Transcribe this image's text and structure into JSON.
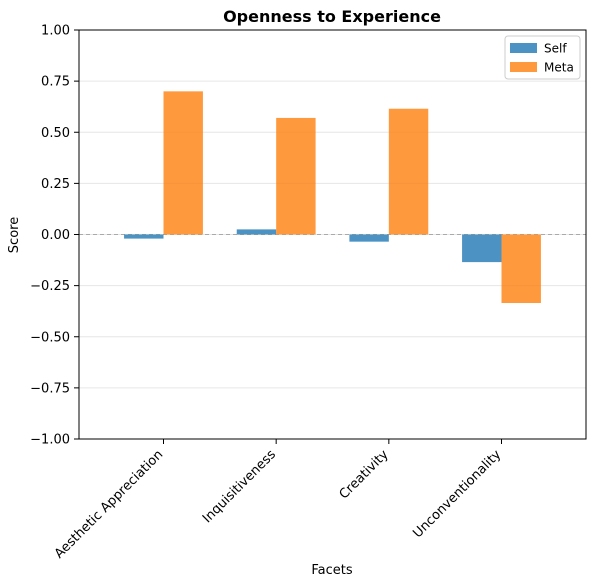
{
  "chart_data": {
    "type": "bar",
    "title": "Openness to Experience",
    "xlabel": "Facets",
    "ylabel": "Score",
    "categories": [
      "Aesthetic Appreciation",
      "Inquisitiveness",
      "Creativity",
      "Unconventionality"
    ],
    "series": [
      {
        "name": "Self",
        "values": [
          -0.02,
          0.025,
          -0.035,
          -0.135
        ],
        "color": "#1f77b4"
      },
      {
        "name": "Meta",
        "values": [
          0.7,
          0.57,
          0.615,
          -0.335
        ],
        "color": "#ff7f0e"
      }
    ],
    "ylim": [
      -1.0,
      1.0
    ],
    "yticks": [
      "−1.00",
      "−0.75",
      "−0.50",
      "−0.25",
      "0.00",
      "0.25",
      "0.50",
      "0.75",
      "1.00"
    ],
    "ytick_values": [
      -1.0,
      -0.75,
      -0.5,
      -0.25,
      0.0,
      0.25,
      0.5,
      0.75,
      1.0
    ],
    "grid": "horizontal",
    "legend_position": "top-right",
    "zero_line": "dashed"
  }
}
